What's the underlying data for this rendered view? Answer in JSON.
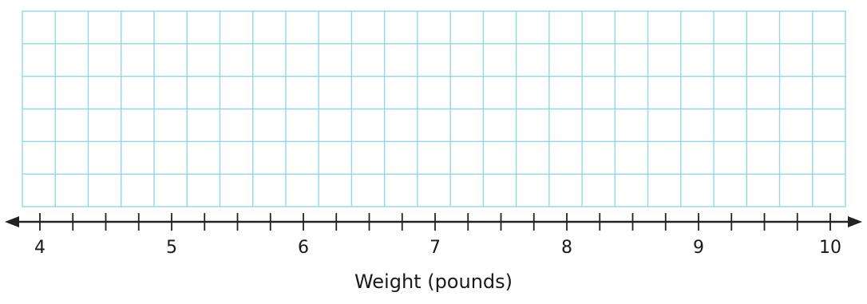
{
  "grid": {
    "columns": 25,
    "rows": 6,
    "line_color": "#8fd8e6"
  },
  "number_line": {
    "min": 4,
    "max": 10,
    "tick_step": 0.25,
    "labels": [
      "4",
      "5",
      "6",
      "7",
      "8",
      "9",
      "10"
    ],
    "label_values": [
      4,
      5,
      6,
      7,
      8,
      9,
      10
    ],
    "axis_color": "#222222"
  },
  "axis_title": "Weight (pounds)"
}
